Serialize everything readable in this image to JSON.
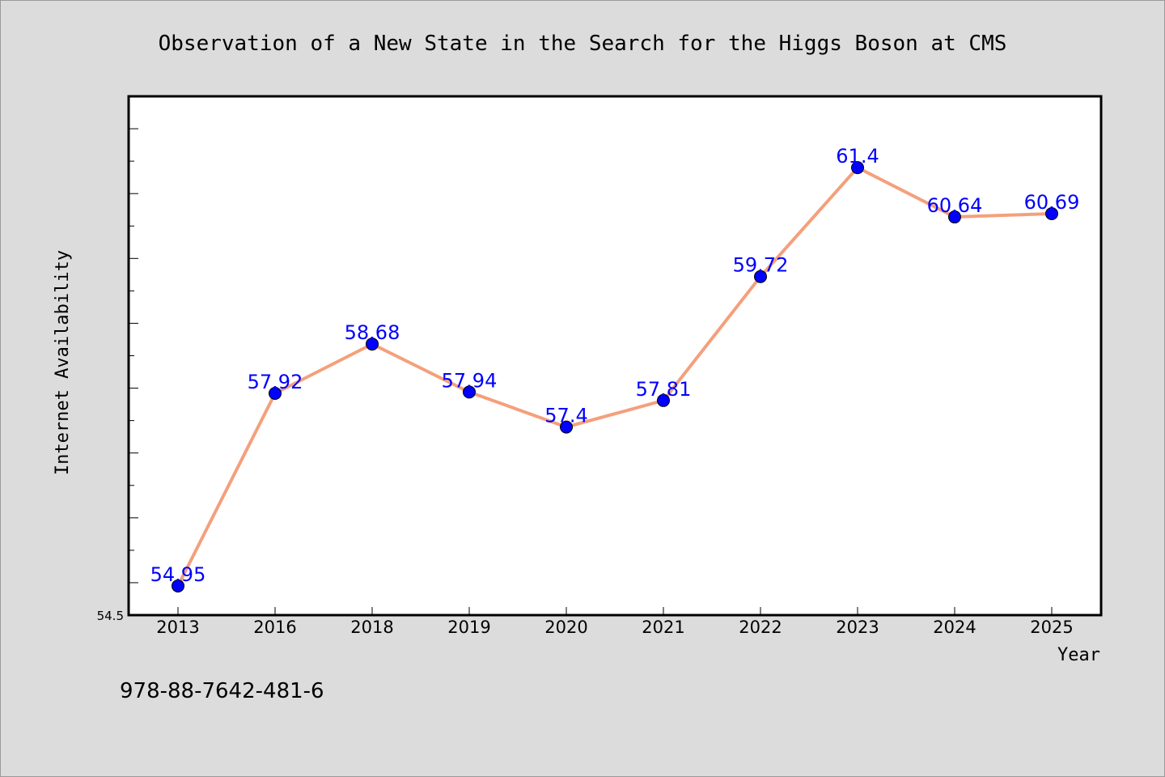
{
  "chart_data": {
    "type": "line",
    "title": "Observation of a New State in the Search for the Higgs Boson at CMS",
    "xlabel": "Year",
    "ylabel": "Internet Availability",
    "categories": [
      "2013",
      "2016",
      "2018",
      "2019",
      "2020",
      "2021",
      "2022",
      "2023",
      "2024",
      "2025"
    ],
    "series": [
      {
        "values": [
          54.95,
          57.92,
          58.68,
          57.94,
          57.4,
          57.81,
          59.72,
          61.4,
          60.64,
          60.69
        ],
        "data_labels": [
          "54.95",
          "57.92",
          "58.68",
          "57.94",
          "57.4",
          "57.81",
          "59.72",
          "61.4",
          "60.64",
          "60.69"
        ]
      }
    ],
    "y_tick_labels": [
      "54.5"
    ],
    "ylim": [
      54.5,
      62.5
    ],
    "grid": false,
    "legend": "none",
    "colors": {
      "line": "#f4a07c",
      "marker": "#0000ff",
      "data_label": "#0000ff",
      "background": "#dcdcdc",
      "plot_background": "#ffffff"
    }
  },
  "footer_text": "978-88-7642-481-6"
}
